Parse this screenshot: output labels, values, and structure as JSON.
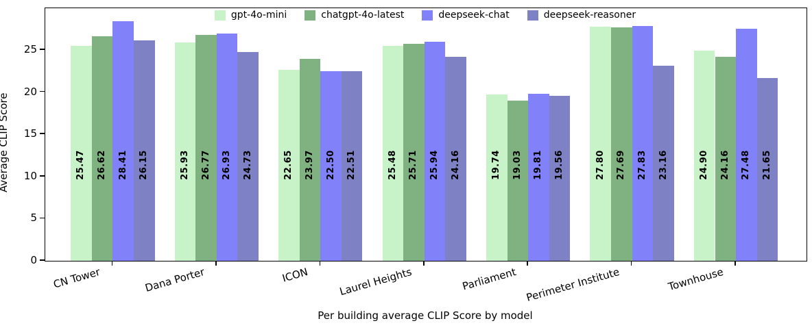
{
  "chart_data": {
    "type": "bar",
    "title": "",
    "xlabel": "Per building average CLIP Score by model",
    "ylabel": "Average CLIP Score",
    "categories": [
      "CN Tower",
      "Dana Porter",
      "ICON",
      "Laurel Heights",
      "Parliament",
      "Perimeter Institute",
      "Townhouse"
    ],
    "series": [
      {
        "name": "gpt-4o-mini",
        "color": "#c8f3c8",
        "values": [
          25.47,
          25.93,
          22.65,
          25.48,
          19.74,
          27.8,
          24.9
        ]
      },
      {
        "name": "chatgpt-4o-latest",
        "color": "#80b180",
        "values": [
          26.62,
          26.77,
          23.97,
          25.71,
          19.03,
          27.69,
          24.16
        ]
      },
      {
        "name": "deepseek-chat",
        "color": "#8181fa",
        "values": [
          28.41,
          26.93,
          22.5,
          25.94,
          19.81,
          27.83,
          27.48
        ]
      },
      {
        "name": "deepseek-reasoner",
        "color": "#7e82c4",
        "values": [
          26.15,
          24.73,
          22.51,
          24.16,
          19.56,
          23.16,
          21.65
        ]
      }
    ],
    "yticks": [
      0,
      5,
      10,
      15,
      20,
      25
    ],
    "ylim": [
      0,
      29.95
    ],
    "legend_position": "upper center",
    "grid": false,
    "value_labels": true,
    "value_label_format": "2dp",
    "axis_color": "#000000",
    "background_color": "#ffffff"
  }
}
